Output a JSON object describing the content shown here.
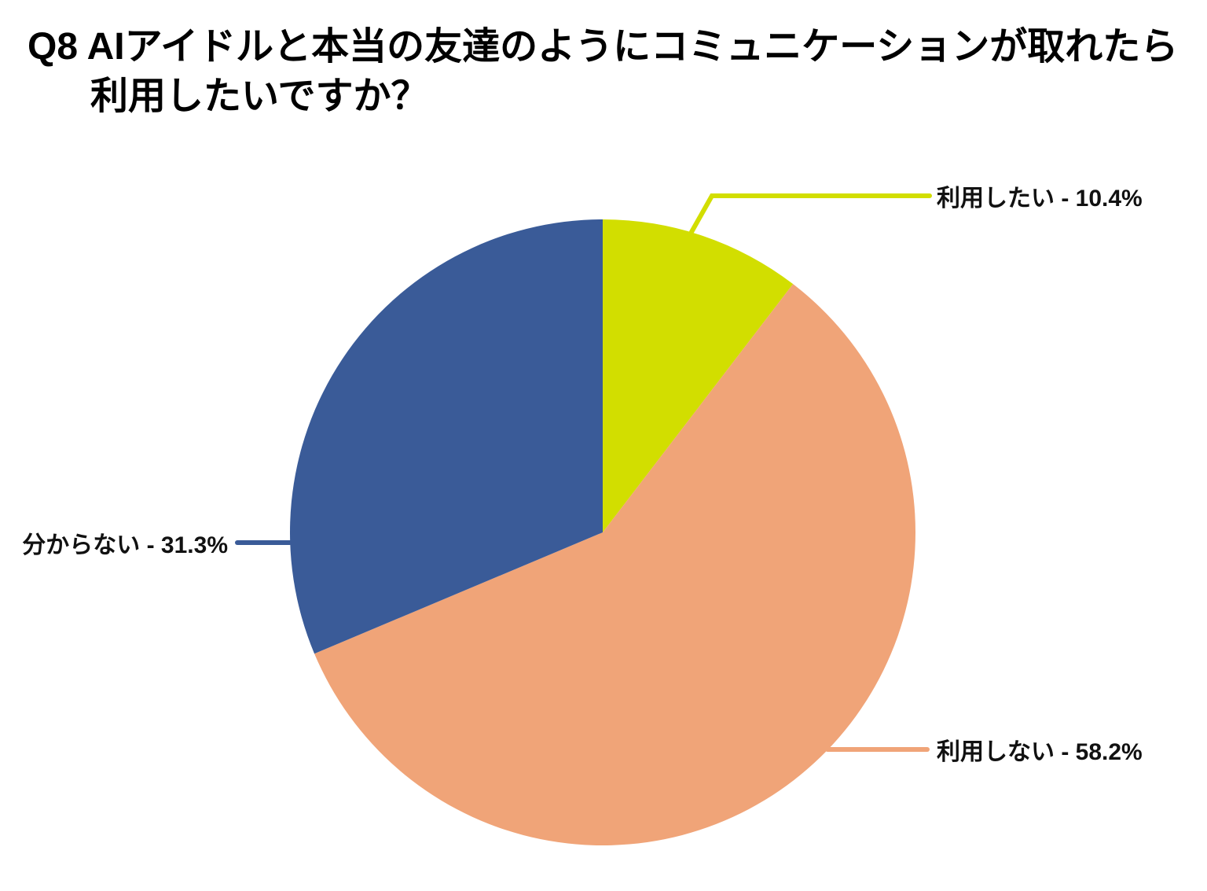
{
  "title": {
    "line1": "Q8 AIアイドルと本当の友達のようにコミュニケーションが取れたら",
    "line2": "利用したいですか？"
  },
  "chart_data": {
    "type": "pie",
    "title": "Q8 AIアイドルと本当の友達のようにコミュニケーションが取れたら利用したいですか？",
    "categories": [
      "利用したい",
      "利用しない",
      "分からない"
    ],
    "values": [
      10.4,
      58.2,
      31.3
    ],
    "unit": "%",
    "start_angle": "12-oclock",
    "direction": "clockwise",
    "legend_position": "none",
    "labels_style": "outside-leader-lines",
    "background_color": "#ffffff",
    "label_text_color": "#111111",
    "slices": [
      {
        "label": "利用したい",
        "value_pct": 10.4,
        "display": "利用したい - 10.4%",
        "color": "#d2de00"
      },
      {
        "label": "利用しない",
        "value_pct": 58.2,
        "display": "利用しない - 58.2%",
        "color": "#f0a478"
      },
      {
        "label": "分からない",
        "value_pct": 31.3,
        "display": "分からない - 31.3%",
        "color": "#3a5b98"
      }
    ]
  }
}
